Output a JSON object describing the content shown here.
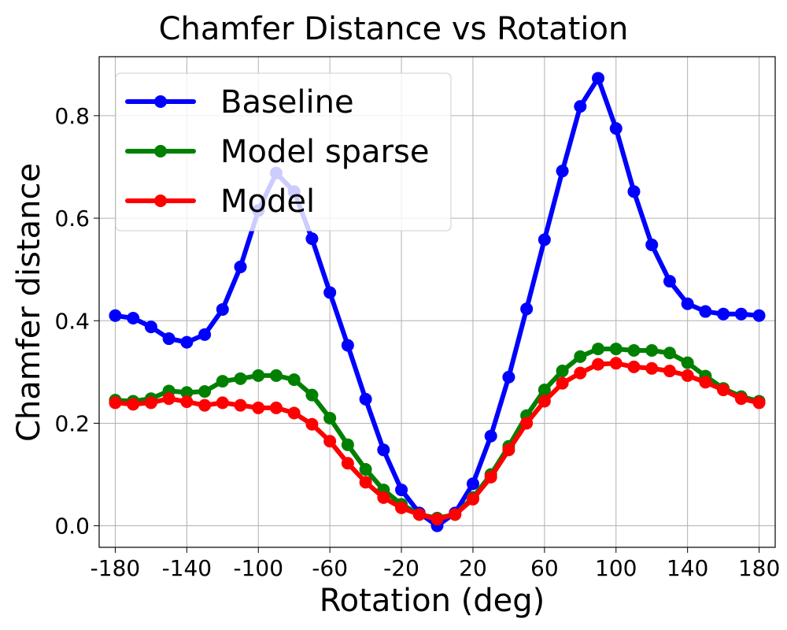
{
  "chart_data": {
    "type": "line",
    "title": "Chamfer Distance vs Rotation",
    "xlabel": "Rotation (deg)",
    "ylabel": "Chamfer distance",
    "xlim": [
      -189,
      189
    ],
    "ylim": [
      -0.042,
      0.915
    ],
    "xticks": [
      -180,
      -140,
      -100,
      -60,
      -20,
      20,
      60,
      100,
      140,
      180
    ],
    "xtick_labels": [
      "-180",
      "-140",
      "-100",
      "-60",
      "-20",
      "20",
      "60",
      "100",
      "140",
      "180"
    ],
    "yticks": [
      0.0,
      0.2,
      0.4,
      0.6,
      0.8
    ],
    "ytick_labels": [
      "0.0",
      "0.2",
      "0.4",
      "0.6",
      "0.8"
    ],
    "grid": true,
    "legend_position": "top-left",
    "x": [
      -180,
      -170,
      -160,
      -150,
      -140,
      -130,
      -120,
      -110,
      -100,
      -90,
      -80,
      -70,
      -60,
      -50,
      -40,
      -30,
      -20,
      -10,
      0,
      10,
      20,
      30,
      40,
      50,
      60,
      70,
      80,
      90,
      100,
      110,
      120,
      130,
      140,
      150,
      160,
      170,
      180
    ],
    "series": [
      {
        "name": "Baseline",
        "color": "#0000ff",
        "values": [
          0.41,
          0.405,
          0.388,
          0.365,
          0.358,
          0.373,
          0.422,
          0.505,
          0.615,
          0.688,
          0.652,
          0.56,
          0.455,
          0.352,
          0.247,
          0.148,
          0.07,
          0.025,
          0.0,
          0.025,
          0.082,
          0.175,
          0.29,
          0.423,
          0.558,
          0.692,
          0.818,
          0.873,
          0.775,
          0.652,
          0.548,
          0.477,
          0.433,
          0.418,
          0.413,
          0.413,
          0.41
        ]
      },
      {
        "name": "Model sparse",
        "color": "#008000",
        "values": [
          0.245,
          0.243,
          0.248,
          0.263,
          0.26,
          0.262,
          0.282,
          0.287,
          0.293,
          0.293,
          0.285,
          0.255,
          0.21,
          0.158,
          0.11,
          0.07,
          0.042,
          0.022,
          0.015,
          0.022,
          0.055,
          0.1,
          0.155,
          0.215,
          0.265,
          0.302,
          0.33,
          0.345,
          0.345,
          0.342,
          0.342,
          0.337,
          0.318,
          0.292,
          0.268,
          0.252,
          0.243
        ]
      },
      {
        "name": "Model",
        "color": "#ff0000",
        "values": [
          0.24,
          0.237,
          0.24,
          0.248,
          0.242,
          0.235,
          0.24,
          0.235,
          0.23,
          0.23,
          0.22,
          0.198,
          0.165,
          0.122,
          0.085,
          0.055,
          0.035,
          0.022,
          0.013,
          0.022,
          0.052,
          0.095,
          0.148,
          0.2,
          0.243,
          0.278,
          0.298,
          0.315,
          0.317,
          0.31,
          0.307,
          0.302,
          0.293,
          0.28,
          0.265,
          0.248,
          0.24
        ]
      }
    ]
  }
}
